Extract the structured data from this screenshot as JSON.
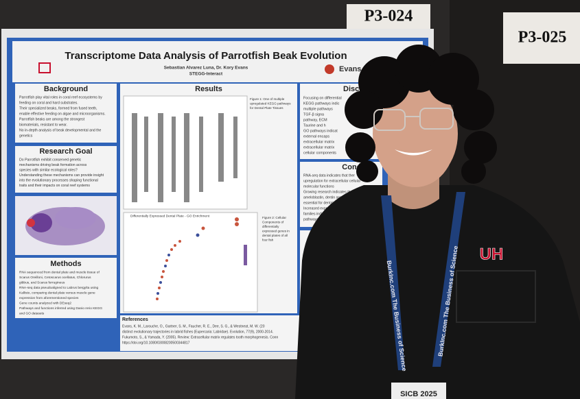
{
  "signs": [
    "P3-024",
    "P3-025"
  ],
  "poster": {
    "title": "Transcriptome Data Analysis of Parrotfish Beak Evolution",
    "authors": "Sebastian Alvarez Luna, Dr. Kory Evans",
    "program": "STEGG-Interact",
    "logo_text": "Evans L",
    "background": {
      "heading": "Background",
      "bullets": [
        "Parrotfish play vital roles in coral reef ecosystems by",
        "feeding on coral and hard substrates.",
        "Their specialized beaks, formed from fused teeth,",
        "enable effective feeding on algae and microorganisms.",
        "Parrotfish beaks are among the strongest",
        "biomaterials, resistant to wear.",
        "No in-depth analysis of beak developmental and the",
        "genetics"
      ]
    },
    "research_goal": {
      "heading": "Research Goal",
      "lines": [
        "Do Parrotfish exhibit conserved genetic",
        "mechanisms driving beak formation across",
        "species with similar ecological roles?",
        "Understanding these mechanisms can provide insight",
        "into the evolutionary processes shaping functional",
        "traits and their impacts on coral reef systems"
      ]
    },
    "methods": {
      "heading": "Methods",
      "bullets": [
        "RNA sequenced from dental plate and muscle tissue of",
        "Scarus Oreilloni, Cetoscarus ocellatus, Chlorurus",
        "gibbus, and Scarus ferrugineus",
        "RNA-seq data pseudoaligned to Labrus bergylta using",
        "Kallisto, comparing dental plate versus muscle gene",
        "expression from aforementioned species",
        "Gene counts analyzed with DEseq2",
        "Pathways and functions inferred using Danio rerio KEGG",
        "and GO datasets"
      ]
    },
    "results": {
      "heading": "Results",
      "figure1_caption": [
        "Figure 1: One of multiple",
        "upregulated KEGG pathways",
        "for Dental Plate Tissues"
      ],
      "chart_title": "Differentially Expressed Dental Plate - GO Enrichment",
      "figure2_caption": [
        "Figure 2: Cellular",
        "Components of",
        "differentially",
        "expressed genes in",
        "dental plates of all",
        "four fish"
      ]
    },
    "discussion": {
      "heading": "Discu",
      "lines": [
        "Focusing on differential",
        "KEGG pathways indic",
        "multiple pathways",
        "TGF-β signa",
        "pathway, ECM",
        "Taurine and h",
        "GO pathways indicat",
        "external encaps",
        "extracellular matrix",
        "extracellular matrix",
        "cellular components"
      ]
    },
    "conclusions": {
      "heading": "Conclus",
      "lines": [
        "RNA-seq data indicates that ther",
        "upregulation for extracellular cellular",
        "molecular functions",
        "Growing research indicates that lamin",
        "ameloblastin, dentin are all ECM",
        "essential for dental developm",
        "Increased expression of",
        "families indicate",
        "pathways"
      ]
    },
    "references": {
      "heading": "References",
      "lines": [
        "Evans, K. M., Larouche, O., Gartner, S. M., Faucher, R. E., Dee, S. G., & Westneat, M. W. (20",
        "distinct evolutionary trajectories in labrid fishes (Eupercaria: Labridae). Evolution, 77(9), 2000-2014.",
        "Fukumoto, S., & Yamada, Y. (2005). Review: Extracellular matrix regulates tooth morphogenesis. Conn",
        "https://doi.org/10.1080/03008200500344817"
      ]
    }
  },
  "shirt_logo": "UH",
  "lanyard": "BurkInc.com The Business of Science",
  "badge": "SICB 2025"
}
